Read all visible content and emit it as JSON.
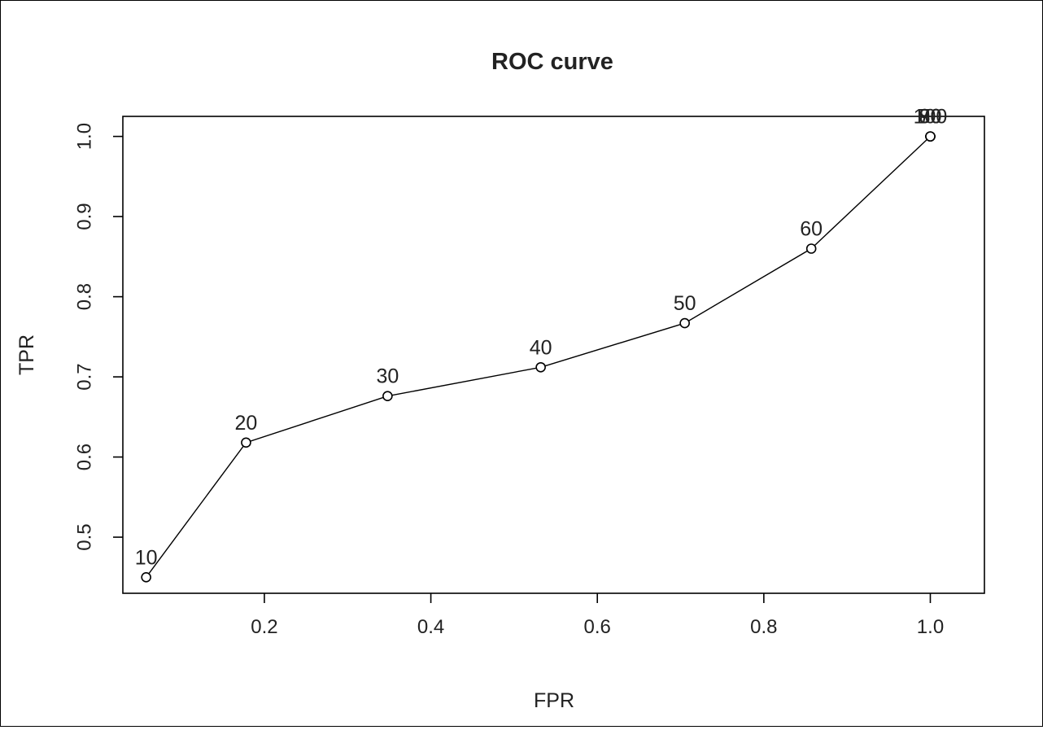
{
  "chart_data": {
    "type": "line",
    "title": "ROC curve",
    "xlabel": "FPR",
    "ylabel": "TPR",
    "xlim": [
      0.03,
      1.065
    ],
    "ylim": [
      0.43,
      1.025
    ],
    "x_ticks": [
      {
        "value": 0.2,
        "label": "0.2"
      },
      {
        "value": 0.4,
        "label": "0.4"
      },
      {
        "value": 0.6,
        "label": "0.6"
      },
      {
        "value": 0.8,
        "label": "0.8"
      },
      {
        "value": 1.0,
        "label": "1.0"
      }
    ],
    "y_ticks": [
      {
        "value": 0.5,
        "label": "0.5"
      },
      {
        "value": 0.6,
        "label": "0.6"
      },
      {
        "value": 0.7,
        "label": "0.7"
      },
      {
        "value": 0.8,
        "label": "0.8"
      },
      {
        "value": 0.9,
        "label": "0.9"
      },
      {
        "value": 1.0,
        "label": "1.0"
      }
    ],
    "grid": false,
    "legend": "none",
    "points": [
      {
        "label": "10",
        "x": 0.058,
        "y": 0.45
      },
      {
        "label": "20",
        "x": 0.178,
        "y": 0.618
      },
      {
        "label": "30",
        "x": 0.348,
        "y": 0.676
      },
      {
        "label": "40",
        "x": 0.532,
        "y": 0.712
      },
      {
        "label": "50",
        "x": 0.705,
        "y": 0.767
      },
      {
        "label": "60",
        "x": 0.857,
        "y": 0.86
      },
      {
        "label": "70",
        "x": 1.0,
        "y": 1.0
      },
      {
        "label": "80",
        "x": 1.0,
        "y": 1.0
      },
      {
        "label": "90",
        "x": 1.0,
        "y": 1.0
      },
      {
        "label": "100",
        "x": 1.0,
        "y": 1.0
      }
    ]
  }
}
